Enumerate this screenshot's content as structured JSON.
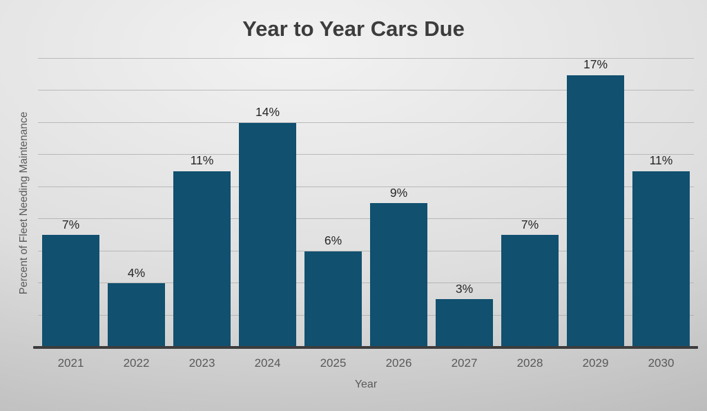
{
  "chart_data": {
    "type": "bar",
    "title": "Year to Year Cars Due",
    "categories": [
      "2021",
      "2022",
      "2023",
      "2024",
      "2025",
      "2026",
      "2027",
      "2028",
      "2029",
      "2030"
    ],
    "values": [
      7,
      4,
      11,
      14,
      6,
      9,
      3,
      7,
      17,
      11
    ],
    "data_labels": [
      "7%",
      "4%",
      "11%",
      "14%",
      "6%",
      "9%",
      "3%",
      "7%",
      "17%",
      "11%"
    ],
    "xlabel": "Year",
    "ylabel": "Percent of Fleet Needing Maintenance",
    "ylim": [
      0,
      18
    ],
    "grid_step": 2,
    "grid": "horizontal",
    "legend_position": "none",
    "y_tick_labels_visible": false,
    "bar_color": "#11506F",
    "axis_line_color": "#3d3d3d",
    "gridline_color": "#a9a9a9",
    "title_color": "#3c3c3c",
    "tick_label_color": "#595959",
    "value_label_color": "#262626",
    "background_colors": [
      "#f2f2f2",
      "#dedede",
      "#b5b5b5"
    ]
  }
}
